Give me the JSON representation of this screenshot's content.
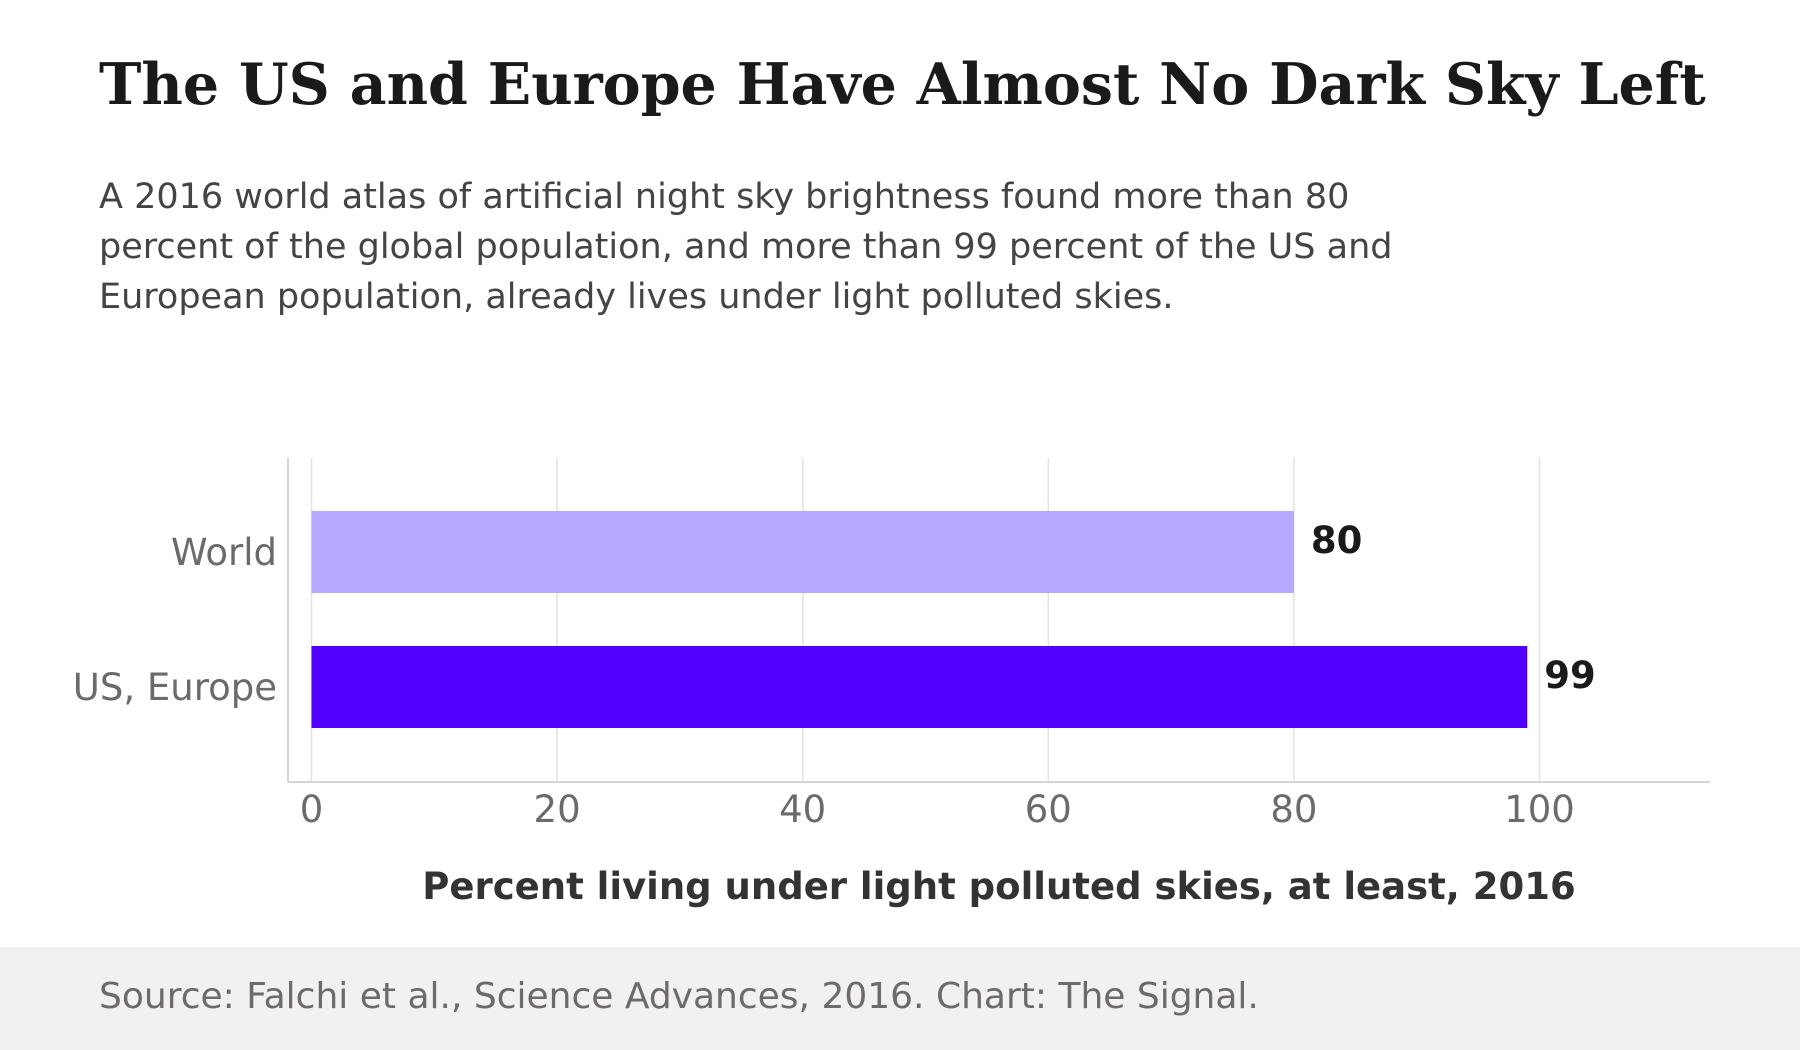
{
  "header": {
    "title": "The US and Europe Have Almost No Dark Sky Left",
    "subtitle": "A 2016 world atlas of artificial night sky brightness found more than 80 percent of the global population, and more than 99 percent of the US and European population, already lives under light polluted skies."
  },
  "footer": {
    "source": "Source: Falchi et al., Science Advances, 2016. Chart: The Signal."
  },
  "colors": {
    "world_bar": "#b8a8ff",
    "us_europe_bar": "#5200ff",
    "grid": "#e2e2e2",
    "axis": "#d4d4d4",
    "tick_text": "#6b6b6b",
    "label_text": "#1a1a1a",
    "xlabel_text": "#333333",
    "footer_bg": "#f2f1f0"
  },
  "chart_data": {
    "type": "bar",
    "orientation": "horizontal",
    "categories": [
      "World",
      "US, Europe"
    ],
    "values": [
      80,
      99
    ],
    "data_labels": [
      "80",
      "99"
    ],
    "title": "The US and Europe Have Almost No Dark Sky Left",
    "xlabel": "Percent living under light polluted skies, at least, 2016",
    "ylabel": "",
    "xlim": [
      -1,
      113
    ],
    "xticks": [
      0,
      20,
      40,
      60,
      80,
      100
    ],
    "xtick_labels": [
      "0",
      "20",
      "40",
      "60",
      "80",
      "100"
    ],
    "grid": true,
    "legend": false
  }
}
